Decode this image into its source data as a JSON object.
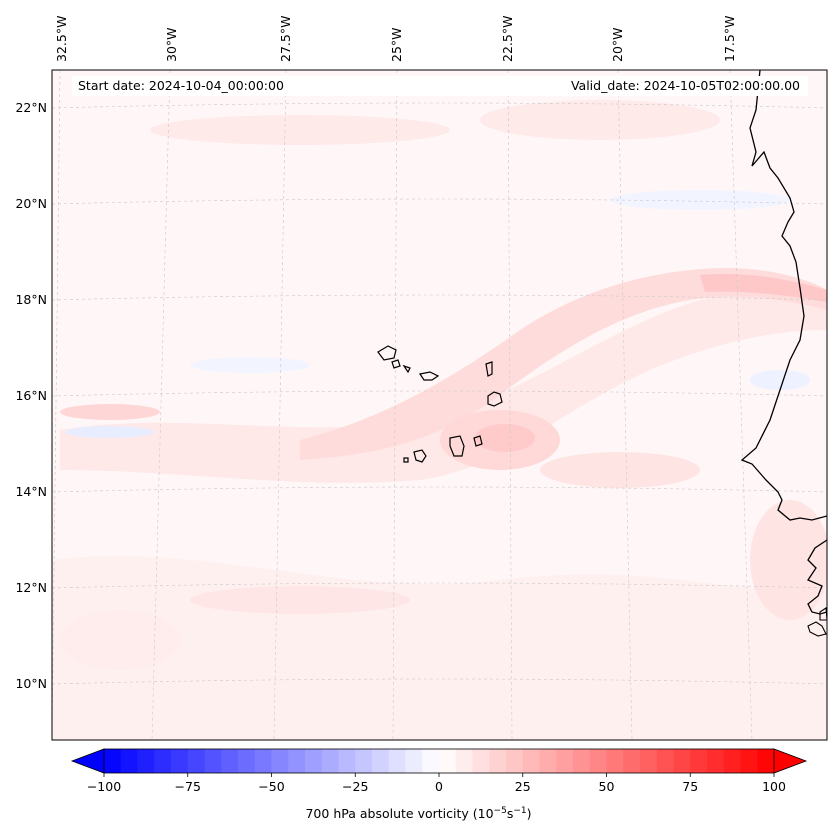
{
  "map": {
    "start_date": "Start date: 2024-10-04_00:00:00",
    "valid_date": "Valid_date: 2024-10-05T02:00:00.00",
    "lon_labels": [
      "32.5°W",
      "30°W",
      "27.5°W",
      "25°W",
      "22.5°W",
      "20°W",
      "17.5°W"
    ],
    "lat_labels": [
      "22°N",
      "20°N",
      "18°N",
      "16°N",
      "14°N",
      "12°N",
      "10°N"
    ],
    "extent": {
      "lon_min": -32.5,
      "lon_max": -15.6,
      "lat_min": 8.9,
      "lat_max": 22.8
    }
  },
  "colorbar": {
    "min": -100,
    "max": 100,
    "tick_values": [
      -100,
      -75,
      -50,
      -25,
      0,
      25,
      50,
      75,
      100
    ],
    "tick_labels": [
      "−100",
      "−75",
      "−50",
      "−25",
      "0",
      "25",
      "50",
      "75",
      "100"
    ],
    "label_main": "700 hPa absolute vorticity (10",
    "label_exp1": "−5",
    "label_mid": "s",
    "label_exp2": "−1",
    "label_end": ")",
    "neg_color": "#0000ff",
    "pos_color": "#ff0000",
    "mid_color": "#ffffff"
  },
  "colors": {
    "coastline": "#000000",
    "gridline": "#bfbfbf",
    "shade_light": "#fff3f3",
    "shade_medium": "#ffe2e2",
    "shade_strong": "#ffcccc",
    "shade_blue": "#f1f3ff"
  }
}
